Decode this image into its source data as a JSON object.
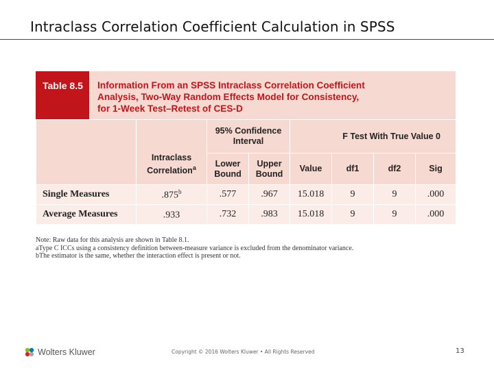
{
  "slide": {
    "title": "Intraclass Correlation Coefficient Calculation in SPSS",
    "page_number": "13",
    "copyright": "Copyright © 2016 Wolters Kluwer • All Rights Reserved"
  },
  "brand": {
    "name": "Wolters Kluwer",
    "logo_icon": "wolters-kluwer-logo",
    "colors": {
      "accent_red": "#c2151b",
      "header_pink": "#f6d9d0",
      "row_pink": "#fbece7",
      "rule_blue": "#1f4e79"
    }
  },
  "table": {
    "label": "Table 8.5",
    "title_lines": [
      "Information From an SPSS Intraclass Correlation Coefficient",
      "Analysis, Two-Way Random Effects Model for Consistency,",
      "for 1-Week Test–Retest of CES-D"
    ],
    "group_headers": {
      "confidence_line1": "95% Confidence",
      "confidence_line2": "Interval",
      "f_test": "F Test With True Value 0"
    },
    "column_headers": {
      "icc_line1": "Intraclass",
      "icc_line2": "Correlation",
      "icc_sup": "a",
      "lower_line1": "Lower",
      "lower_line2": "Bound",
      "upper_line1": "Upper",
      "upper_line2": "Bound",
      "value": "Value",
      "df1": "df1",
      "df2": "df2",
      "sig": "Sig"
    },
    "rows": [
      {
        "label": "Single Measures",
        "icc": ".875",
        "icc_sup": "b",
        "lower": ".577",
        "upper": ".967",
        "value": "15.018",
        "df1": "9",
        "df2": "9",
        "sig": ".000"
      },
      {
        "label": "Average Measures",
        "icc": ".933",
        "icc_sup": "",
        "lower": ".732",
        "upper": ".983",
        "value": "15.018",
        "df1": "9",
        "df2": "9",
        "sig": ".000"
      }
    ],
    "notes": [
      "Note: Raw data for this analysis are shown in Table 8.1.",
      "aType C ICCs using a consistency definition between-measure variance is excluded from the denominator variance.",
      "bThe estimator is the same, whether the interaction effect is present or not."
    ]
  }
}
